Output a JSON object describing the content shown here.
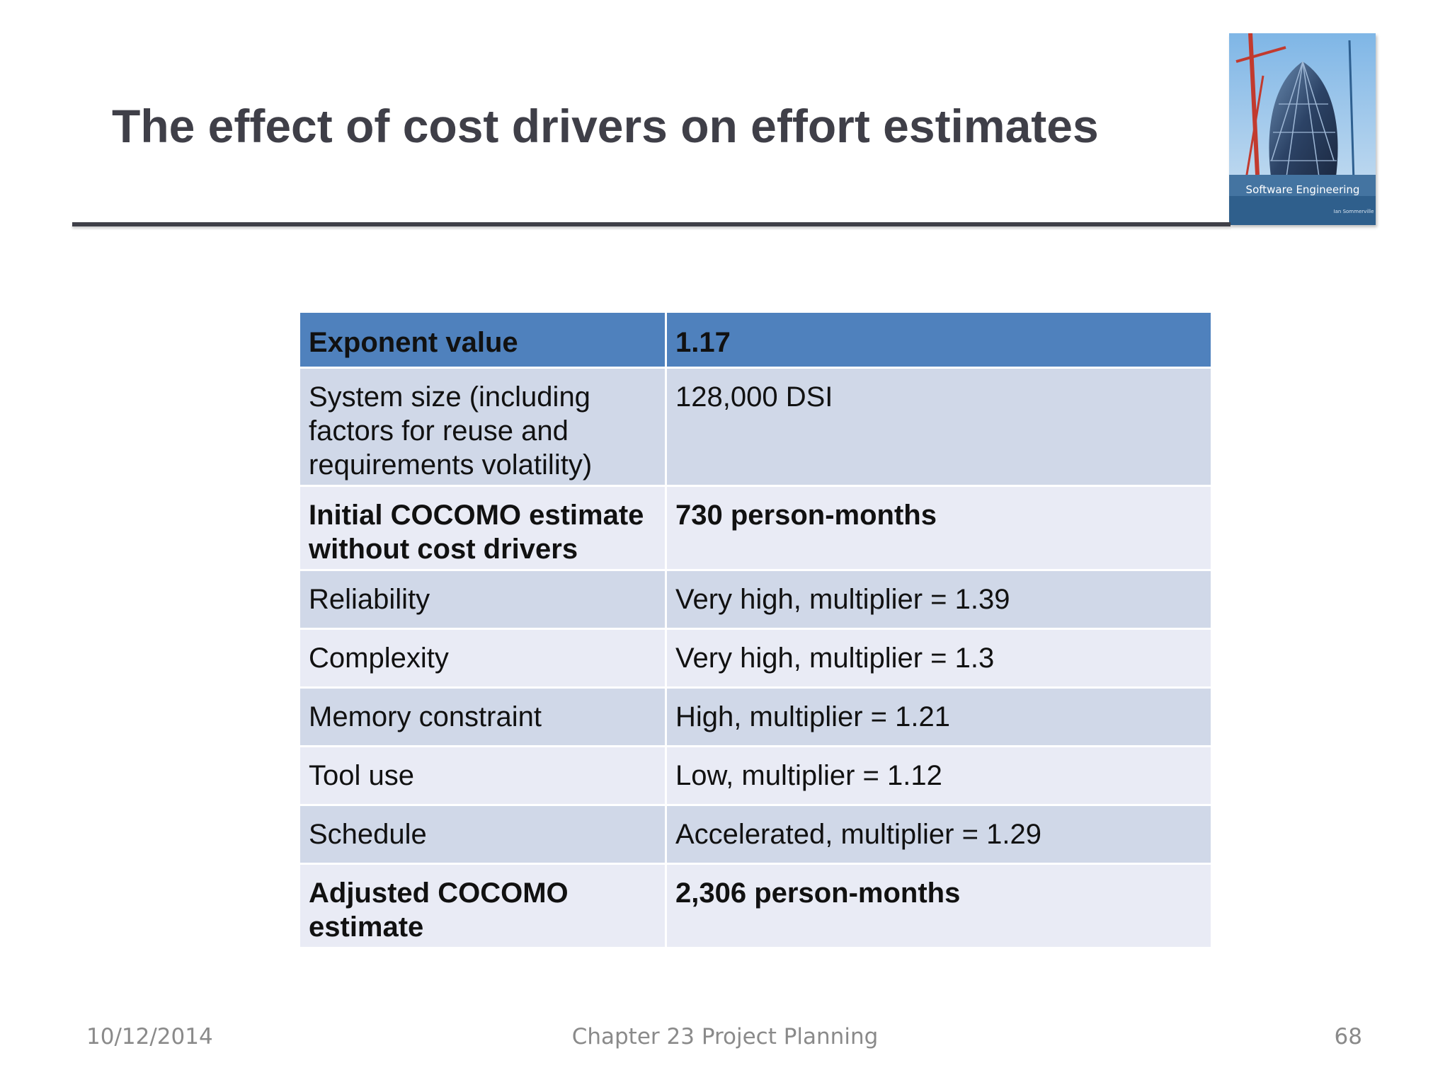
{
  "slide": {
    "title": "The effect of cost drivers on effort estimates",
    "book_cover": {
      "icon": "book-cover-image",
      "title_text": "Software Engineering",
      "author_text": "Ian Sommerville"
    }
  },
  "table": {
    "rows": [
      {
        "label": "Exponent value",
        "value": "1.17"
      },
      {
        "label": "System size (including factors for reuse and requirements volatility)",
        "value": "128,000 DSI"
      },
      {
        "label": "Initial COCOMO estimate without cost drivers",
        "value": "730 person-months"
      },
      {
        "label": "Reliability",
        "value": "Very high, multiplier = 1.39"
      },
      {
        "label": "Complexity",
        "value": "Very high, multiplier = 1.3"
      },
      {
        "label": "Memory constraint",
        "value": "High, multiplier = 1.21"
      },
      {
        "label": "Tool use",
        "value": "Low, multiplier = 1.12"
      },
      {
        "label": "Schedule",
        "value": "Accelerated, multiplier = 1.29"
      },
      {
        "label": "Adjusted COCOMO estimate",
        "value": "2,306 person-months"
      }
    ]
  },
  "footer": {
    "date": "10/12/2014",
    "chapter": "Chapter 23 Project Planning",
    "page": "68"
  },
  "colors": {
    "header": "#4f81bd",
    "row_dark": "#d0d8e8",
    "row_light": "#e9ebf5",
    "title": "#3f3f48"
  }
}
